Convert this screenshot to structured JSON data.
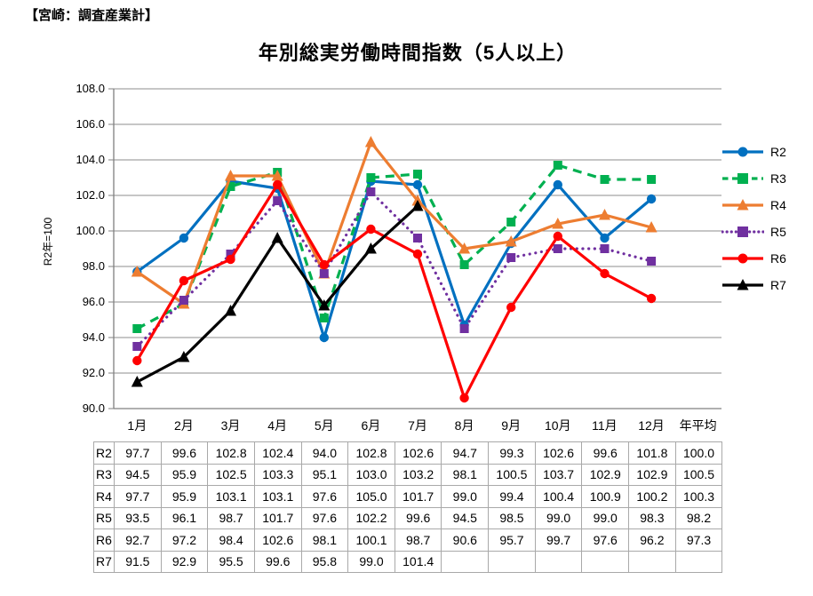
{
  "header": {
    "title": "【宮崎：調査産業計】"
  },
  "chart_style": {
    "grid_color": "#8c8c8c",
    "axis_color": "#808080"
  },
  "table": {
    "border_color": "#a9a9a9"
  },
  "chart_data": {
    "type": "line",
    "title": "年別総実労働時間指数（5人以上）",
    "ylabel": "R2年=100",
    "categories": [
      "1月",
      "2月",
      "3月",
      "4月",
      "5月",
      "6月",
      "7月",
      "8月",
      "9月",
      "10月",
      "11月",
      "12月",
      "年平均"
    ],
    "plotted_months": 12,
    "ylim": [
      90.0,
      108.0
    ],
    "ytick_step": 2.0,
    "grid": true,
    "legend_position": "right",
    "series": [
      {
        "name": "R2",
        "color": "#0070C0",
        "line_style": "solid",
        "marker": "circle",
        "values": [
          97.7,
          99.6,
          102.8,
          102.4,
          94.0,
          102.8,
          102.6,
          94.7,
          99.3,
          102.6,
          99.6,
          101.8
        ],
        "annual_average": 100.0
      },
      {
        "name": "R3",
        "color": "#00B050",
        "line_style": "dashed",
        "marker": "square",
        "values": [
          94.5,
          95.9,
          102.5,
          103.3,
          95.1,
          103.0,
          103.2,
          98.1,
          100.5,
          103.7,
          102.9,
          102.9
        ],
        "annual_average": 100.5
      },
      {
        "name": "R4",
        "color": "#ED7D31",
        "line_style": "solid",
        "marker": "triangle",
        "values": [
          97.7,
          95.9,
          103.1,
          103.1,
          97.6,
          105.0,
          101.7,
          99.0,
          99.4,
          100.4,
          100.9,
          100.2
        ],
        "annual_average": 100.3
      },
      {
        "name": "R5",
        "color": "#7030A0",
        "line_style": "dotted",
        "marker": "square",
        "values": [
          93.5,
          96.1,
          98.7,
          101.7,
          97.6,
          102.2,
          99.6,
          94.5,
          98.5,
          99.0,
          99.0,
          98.3
        ],
        "annual_average": 98.2
      },
      {
        "name": "R6",
        "color": "#FF0000",
        "line_style": "solid",
        "marker": "circle",
        "values": [
          92.7,
          97.2,
          98.4,
          102.6,
          98.1,
          100.1,
          98.7,
          90.6,
          95.7,
          99.7,
          97.6,
          96.2
        ],
        "annual_average": 97.3
      },
      {
        "name": "R7",
        "color": "#000000",
        "line_style": "solid",
        "marker": "triangle",
        "values": [
          91.5,
          92.9,
          95.5,
          99.6,
          95.8,
          99.0,
          101.4
        ],
        "annual_average": null
      }
    ]
  }
}
